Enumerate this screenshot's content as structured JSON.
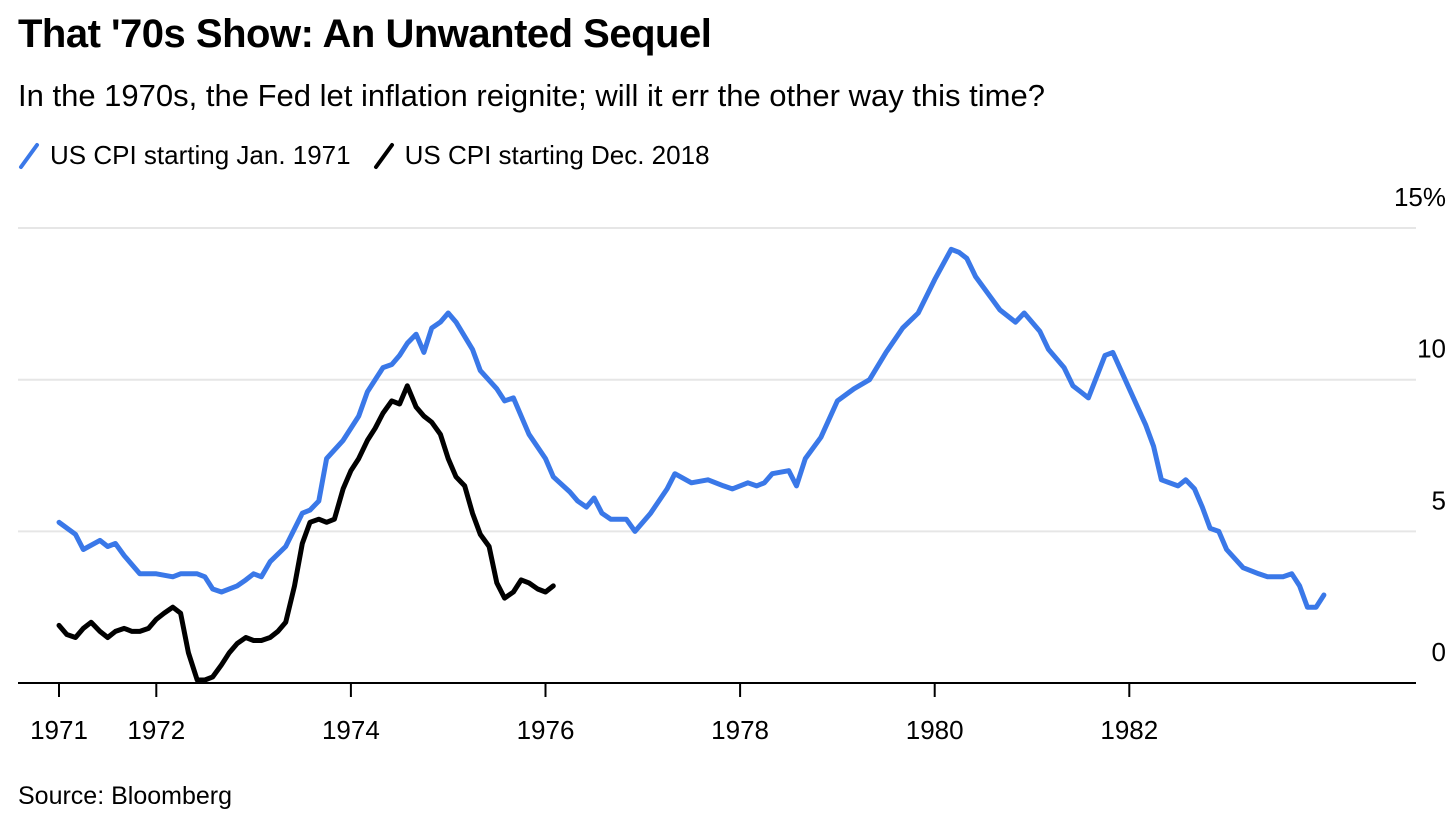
{
  "header": {
    "title": "That '70s Show: An Unwanted Sequel",
    "subtitle": "In the 1970s, the Fed let inflation reignite; will it err the other way this time?"
  },
  "footer": {
    "source": "Source: Bloomberg"
  },
  "colors": {
    "series_1971": "#3a78e8",
    "series_2018": "#000000",
    "gridline": "#e6e6e6",
    "axis": "#000000"
  },
  "chart_data": {
    "type": "line",
    "title": "That '70s Show: An Unwanted Sequel",
    "subtitle": "In the 1970s, the Fed let inflation reignite; will it err the other way this time?",
    "xlabel": "",
    "ylabel": "",
    "x_unit": "years",
    "xlim": [
      1970.9,
      1984.5
    ],
    "ylim": [
      0,
      15
    ],
    "y_ticks": [
      {
        "value": 0,
        "label": "0"
      },
      {
        "value": 5,
        "label": "5"
      },
      {
        "value": 10,
        "label": "10"
      },
      {
        "value": 15,
        "label": "15%"
      }
    ],
    "x_ticks": [
      {
        "value": 1971,
        "label": "1971"
      },
      {
        "value": 1972,
        "label": "1972"
      },
      {
        "value": 1974,
        "label": "1974"
      },
      {
        "value": 1976,
        "label": "1976"
      },
      {
        "value": 1978,
        "label": "1978"
      },
      {
        "value": 1980,
        "label": "1980"
      },
      {
        "value": 1982,
        "label": "1982"
      }
    ],
    "grid": true,
    "legend_position": "top-left",
    "series": [
      {
        "name": "US CPI starting Jan. 1971",
        "color": "#3a78e8",
        "x": [
          1971.0,
          1971.17,
          1971.25,
          1971.42,
          1971.5,
          1971.58,
          1971.67,
          1971.83,
          1972.0,
          1972.17,
          1972.25,
          1972.42,
          1972.5,
          1972.58,
          1972.67,
          1972.83,
          1972.92,
          1973.0,
          1973.08,
          1973.17,
          1973.33,
          1973.5,
          1973.58,
          1973.67,
          1973.75,
          1973.92,
          1974.08,
          1974.17,
          1974.33,
          1974.42,
          1974.5,
          1974.58,
          1974.67,
          1974.75,
          1974.83,
          1974.92,
          1975.0,
          1975.08,
          1975.25,
          1975.33,
          1975.5,
          1975.58,
          1975.67,
          1975.83,
          1976.0,
          1976.08,
          1976.25,
          1976.33,
          1976.42,
          1976.5,
          1976.58,
          1976.67,
          1976.83,
          1976.92,
          1977.08,
          1977.25,
          1977.33,
          1977.5,
          1977.67,
          1977.83,
          1977.92,
          1978.08,
          1978.17,
          1978.25,
          1978.33,
          1978.5,
          1978.58,
          1978.67,
          1978.83,
          1979.0,
          1979.17,
          1979.33,
          1979.5,
          1979.67,
          1979.83,
          1980.0,
          1980.17,
          1980.25,
          1980.33,
          1980.42,
          1980.58,
          1980.67,
          1980.83,
          1980.92,
          1981.08,
          1981.17,
          1981.33,
          1981.42,
          1981.5,
          1981.58,
          1981.75,
          1981.83,
          1982.0,
          1982.17,
          1982.25,
          1982.33,
          1982.5,
          1982.58,
          1982.67,
          1982.75,
          1982.83,
          1982.92,
          1983.0,
          1983.17,
          1983.33,
          1983.42,
          1983.58,
          1983.67,
          1983.75,
          1983.83,
          1983.92,
          1984.0
        ],
        "values": [
          5.3,
          4.9,
          4.4,
          4.7,
          4.5,
          4.6,
          4.2,
          3.6,
          3.6,
          3.5,
          3.6,
          3.6,
          3.5,
          3.1,
          3.0,
          3.2,
          3.4,
          3.6,
          3.5,
          4.0,
          4.5,
          5.6,
          5.7,
          6.0,
          7.4,
          8.0,
          8.8,
          9.6,
          10.4,
          10.5,
          10.8,
          11.2,
          11.5,
          10.9,
          11.7,
          11.9,
          12.2,
          11.9,
          11.0,
          10.3,
          9.7,
          9.3,
          9.4,
          8.2,
          7.4,
          6.8,
          6.3,
          6.0,
          5.8,
          6.1,
          5.6,
          5.4,
          5.4,
          5.0,
          5.6,
          6.4,
          6.9,
          6.6,
          6.7,
          6.5,
          6.4,
          6.6,
          6.5,
          6.6,
          6.9,
          7.0,
          6.5,
          7.4,
          8.1,
          9.3,
          9.7,
          10.0,
          10.9,
          11.7,
          12.2,
          13.3,
          14.3,
          14.2,
          14.0,
          13.4,
          12.7,
          12.3,
          11.9,
          12.2,
          11.6,
          11.0,
          10.4,
          9.8,
          9.6,
          9.4,
          10.8,
          10.9,
          9.7,
          8.5,
          7.8,
          6.7,
          6.5,
          6.7,
          6.4,
          5.8,
          5.1,
          5.0,
          4.4,
          3.8,
          3.6,
          3.5,
          3.5,
          3.6,
          3.2,
          2.5,
          2.5,
          2.9
        ]
      },
      {
        "name": "US CPI starting Dec. 2018",
        "color": "#000000",
        "x": [
          1971.0,
          1971.08,
          1971.17,
          1971.25,
          1971.33,
          1971.42,
          1971.5,
          1971.58,
          1971.67,
          1971.75,
          1971.83,
          1971.92,
          1972.0,
          1972.08,
          1972.17,
          1972.25,
          1972.33,
          1972.42,
          1972.5,
          1972.58,
          1972.67,
          1972.75,
          1972.83,
          1972.92,
          1973.0,
          1973.08,
          1973.17,
          1973.25,
          1973.33,
          1973.42,
          1973.5,
          1973.58,
          1973.67,
          1973.75,
          1973.83,
          1973.92,
          1974.0,
          1974.08,
          1974.17,
          1974.25,
          1974.33,
          1974.42,
          1974.5,
          1974.58,
          1974.67,
          1974.75,
          1974.83,
          1974.92,
          1975.0,
          1975.08,
          1975.17,
          1975.25,
          1975.33,
          1975.42,
          1975.5,
          1975.58,
          1975.67,
          1975.75,
          1975.83,
          1975.92,
          1976.0,
          1976.08
        ],
        "values": [
          1.9,
          1.6,
          1.5,
          1.8,
          2.0,
          1.7,
          1.5,
          1.7,
          1.8,
          1.7,
          1.7,
          1.8,
          2.1,
          2.3,
          2.5,
          2.3,
          1.0,
          0.1,
          0.1,
          0.2,
          0.6,
          1.0,
          1.3,
          1.5,
          1.4,
          1.4,
          1.5,
          1.7,
          2.0,
          3.2,
          4.6,
          5.3,
          5.4,
          5.3,
          5.4,
          6.4,
          7.0,
          7.4,
          8.0,
          8.4,
          8.9,
          9.3,
          9.2,
          9.8,
          9.1,
          8.8,
          8.6,
          8.2,
          7.4,
          6.8,
          6.5,
          5.6,
          4.9,
          4.5,
          3.3,
          2.8,
          3.0,
          3.4,
          3.3,
          3.1,
          3.0,
          3.2
        ]
      }
    ]
  },
  "legend": {
    "items": [
      {
        "label": "US CPI starting Jan. 1971"
      },
      {
        "label": "US CPI starting Dec. 2018"
      }
    ]
  }
}
